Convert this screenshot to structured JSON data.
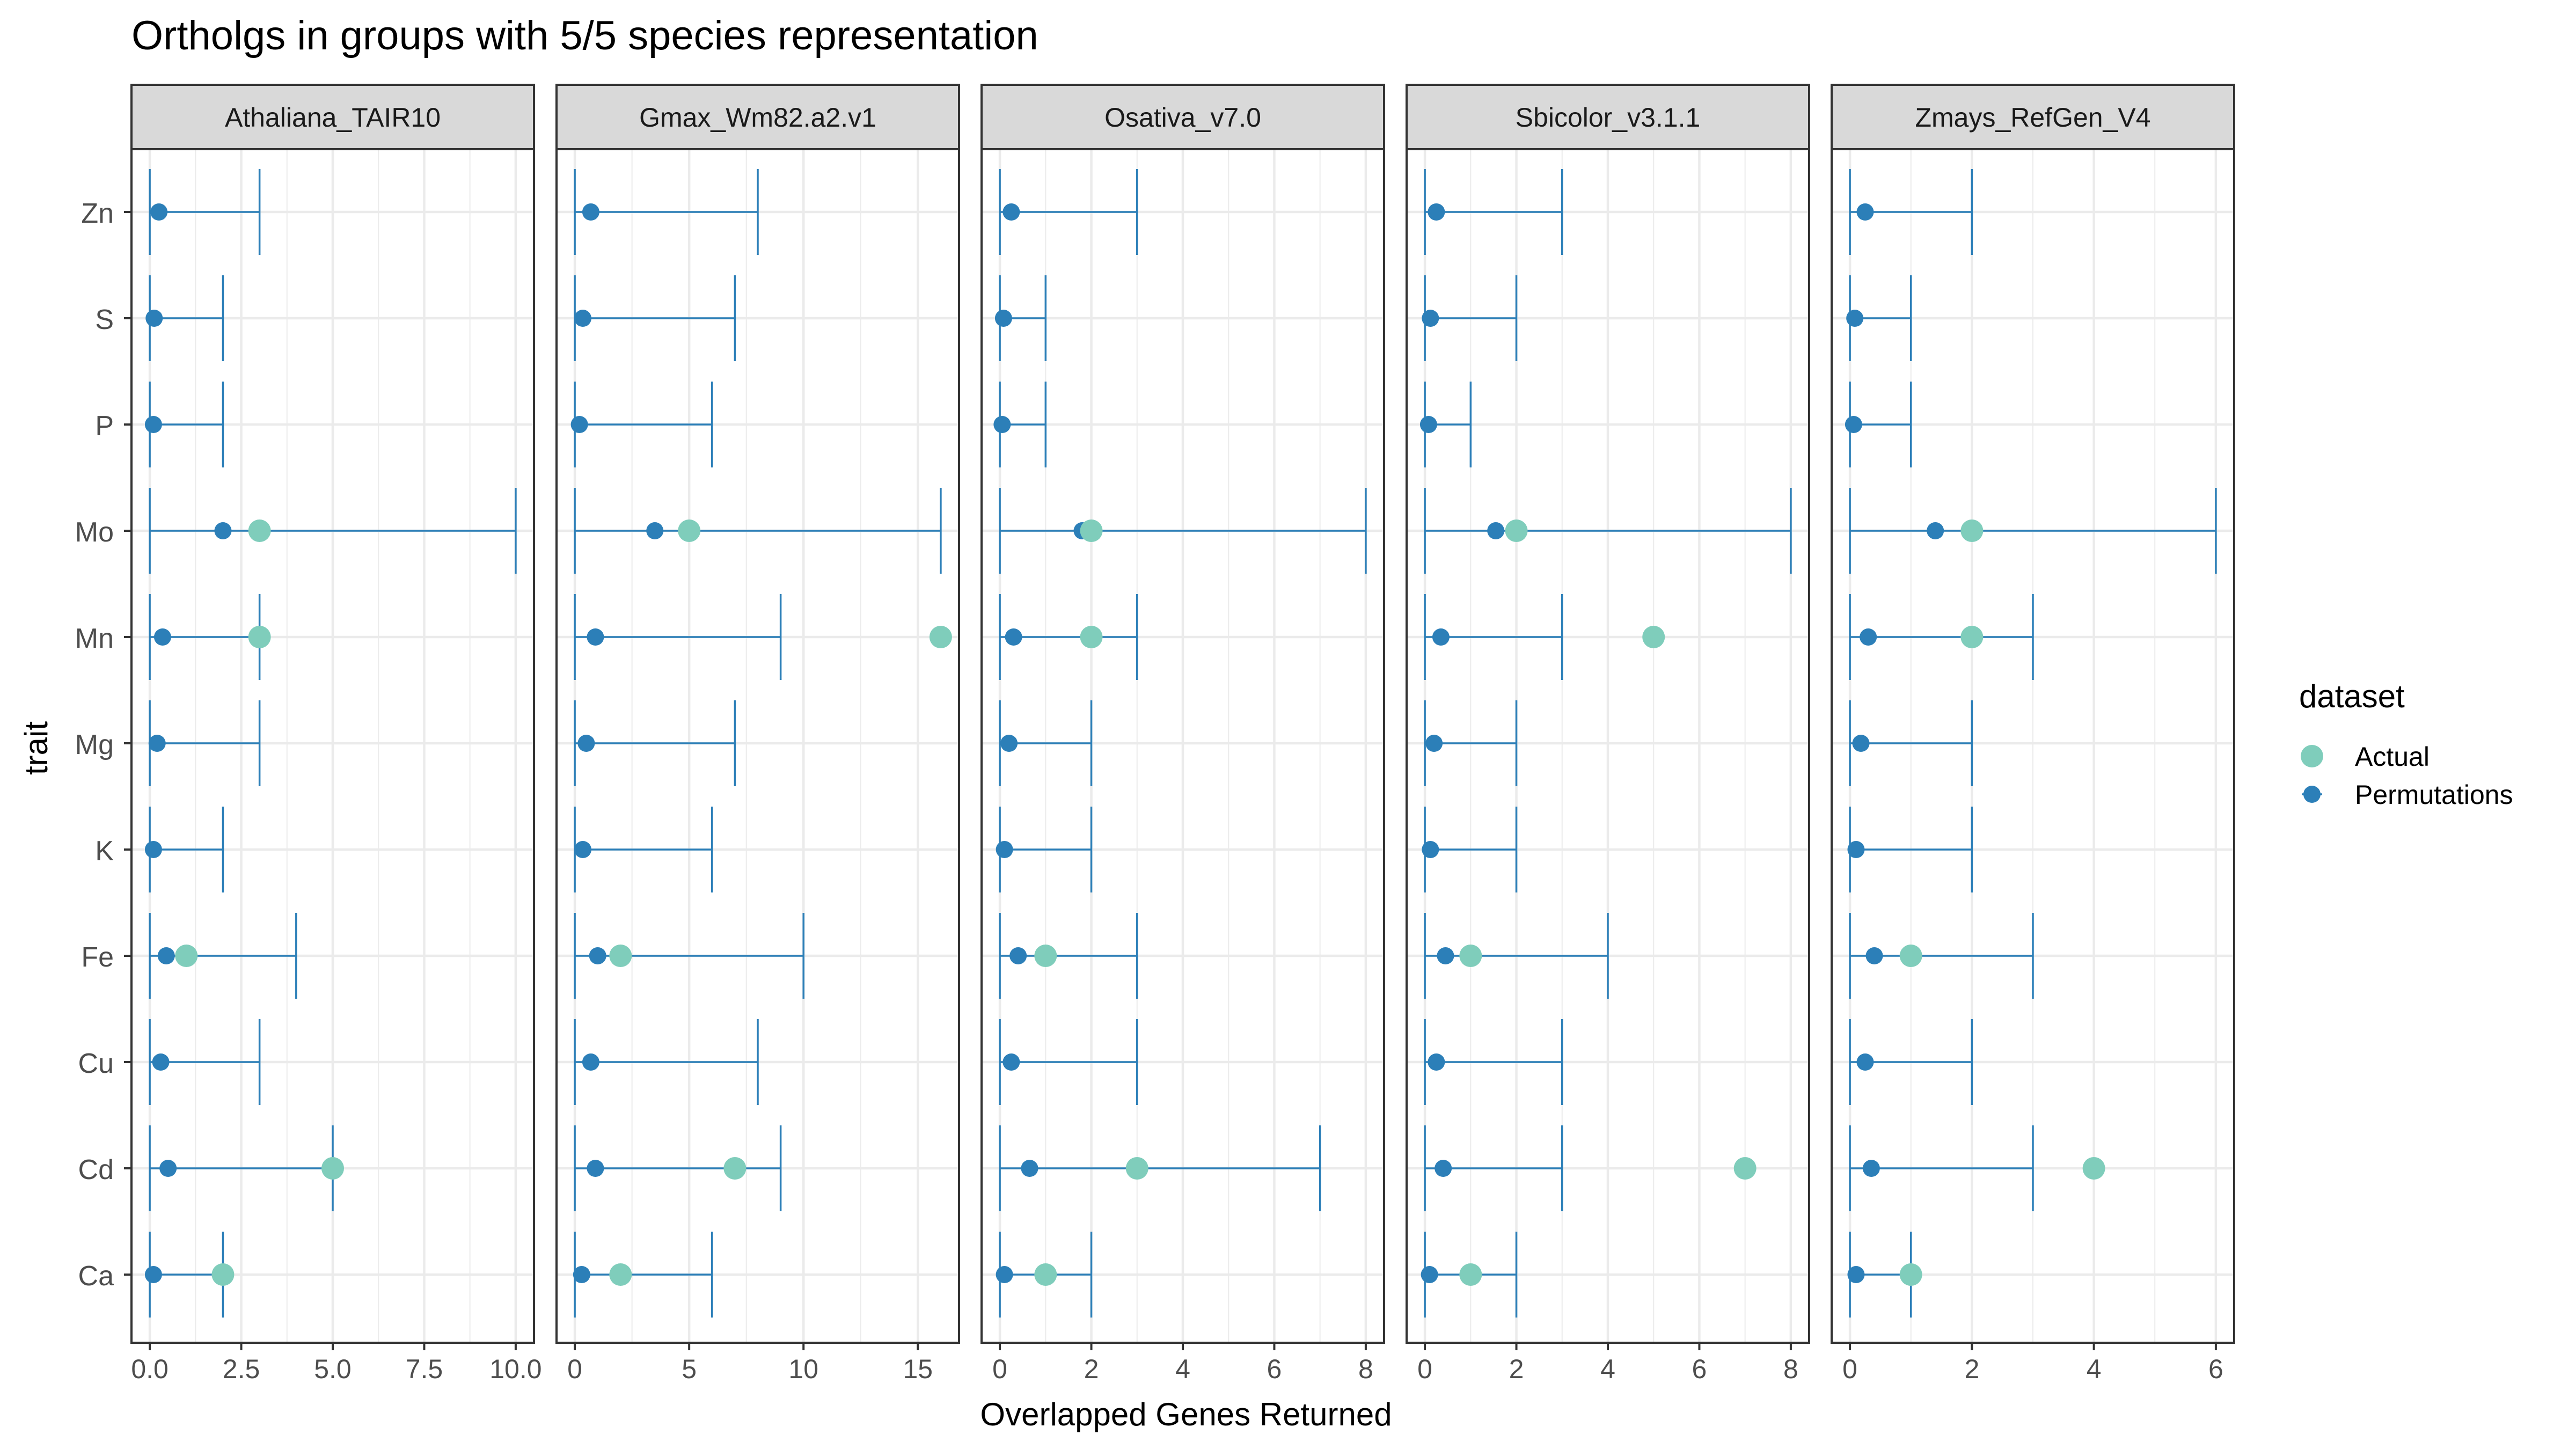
{
  "chart_data": {
    "type": "scatter",
    "title": "Ortholgs in groups with 5/5 species representation",
    "xlabel": "Overlapped Genes Returned",
    "ylabel": "trait",
    "traits": [
      "Zn",
      "S",
      "P",
      "Mo",
      "Mn",
      "Mg",
      "K",
      "Fe",
      "Cu",
      "Cd",
      "Ca"
    ],
    "legend": {
      "title": "dataset",
      "placement": "right",
      "entries": [
        {
          "label": "Actual",
          "color": "#7fcdbb"
        },
        {
          "label": "Permutations",
          "color": "#2c7fb8"
        }
      ]
    },
    "grid": true,
    "colors": {
      "actual": "#7fcdbb",
      "permutations": "#2c7fb8",
      "strip_bg": "#d9d9d9",
      "grid": "#ebebeb"
    },
    "panels": [
      {
        "name": "Athaliana_TAIR10",
        "xlim": [
          -0.5,
          10.5
        ],
        "ticks": [
          0.0,
          2.5,
          5.0,
          7.5,
          10.0
        ],
        "tick_labels": [
          "0.0",
          "2.5",
          "5.0",
          "7.5",
          "10.0"
        ],
        "permutations": {
          "Zn": {
            "mean": 0.25,
            "min": 0,
            "max": 3
          },
          "S": {
            "mean": 0.12,
            "min": 0,
            "max": 2
          },
          "P": {
            "mean": 0.1,
            "min": 0,
            "max": 2
          },
          "Mo": {
            "mean": 2.0,
            "min": 0,
            "max": 10
          },
          "Mn": {
            "mean": 0.35,
            "min": 0,
            "max": 3
          },
          "Mg": {
            "mean": 0.2,
            "min": 0,
            "max": 3
          },
          "K": {
            "mean": 0.1,
            "min": 0,
            "max": 2
          },
          "Fe": {
            "mean": 0.45,
            "min": 0,
            "max": 4
          },
          "Cu": {
            "mean": 0.3,
            "min": 0,
            "max": 3
          },
          "Cd": {
            "mean": 0.5,
            "min": 0,
            "max": 5
          },
          "Ca": {
            "mean": 0.1,
            "min": 0,
            "max": 2
          }
        },
        "actual": {
          "Mo": 3,
          "Mn": 3,
          "Fe": 1,
          "Cd": 5,
          "Ca": 2
        }
      },
      {
        "name": "Gmax_Wm82.a2.v1",
        "xlim": [
          -0.8,
          16.8
        ],
        "ticks": [
          0,
          5,
          10,
          15
        ],
        "tick_labels": [
          "0",
          "5",
          "10",
          "15"
        ],
        "permutations": {
          "Zn": {
            "mean": 0.7,
            "min": 0,
            "max": 8
          },
          "S": {
            "mean": 0.35,
            "min": 0,
            "max": 7
          },
          "P": {
            "mean": 0.2,
            "min": 0,
            "max": 6
          },
          "Mo": {
            "mean": 3.5,
            "min": 0,
            "max": 16
          },
          "Mn": {
            "mean": 0.9,
            "min": 0,
            "max": 9
          },
          "Mg": {
            "mean": 0.5,
            "min": 0,
            "max": 7
          },
          "K": {
            "mean": 0.35,
            "min": 0,
            "max": 6
          },
          "Fe": {
            "mean": 1.0,
            "min": 0,
            "max": 10
          },
          "Cu": {
            "mean": 0.7,
            "min": 0,
            "max": 8
          },
          "Cd": {
            "mean": 0.9,
            "min": 0,
            "max": 9
          },
          "Ca": {
            "mean": 0.3,
            "min": 0,
            "max": 6
          }
        },
        "actual": {
          "Mo": 5,
          "Mn": 16,
          "Fe": 2,
          "Cd": 7,
          "Ca": 2
        }
      },
      {
        "name": "Osativa_v7.0",
        "xlim": [
          -0.4,
          8.4
        ],
        "ticks": [
          0,
          2,
          4,
          6,
          8
        ],
        "tick_labels": [
          "0",
          "2",
          "4",
          "6",
          "8"
        ],
        "permutations": {
          "Zn": {
            "mean": 0.25,
            "min": 0,
            "max": 3
          },
          "S": {
            "mean": 0.08,
            "min": 0,
            "max": 1
          },
          "P": {
            "mean": 0.05,
            "min": 0,
            "max": 1
          },
          "Mo": {
            "mean": 1.8,
            "min": 0,
            "max": 8
          },
          "Mn": {
            "mean": 0.3,
            "min": 0,
            "max": 3
          },
          "Mg": {
            "mean": 0.2,
            "min": 0,
            "max": 2
          },
          "K": {
            "mean": 0.1,
            "min": 0,
            "max": 2
          },
          "Fe": {
            "mean": 0.4,
            "min": 0,
            "max": 3
          },
          "Cu": {
            "mean": 0.25,
            "min": 0,
            "max": 3
          },
          "Cd": {
            "mean": 0.65,
            "min": 0,
            "max": 7
          },
          "Ca": {
            "mean": 0.1,
            "min": 0,
            "max": 2
          }
        },
        "actual": {
          "Mo": 2,
          "Mn": 2,
          "Fe": 1,
          "Cd": 3,
          "Ca": 1
        }
      },
      {
        "name": "Sbicolor_v3.1.1",
        "xlim": [
          -0.4,
          8.4
        ],
        "ticks": [
          0,
          2,
          4,
          6,
          8
        ],
        "tick_labels": [
          "0",
          "2",
          "4",
          "6",
          "8"
        ],
        "permutations": {
          "Zn": {
            "mean": 0.25,
            "min": 0,
            "max": 3
          },
          "S": {
            "mean": 0.12,
            "min": 0,
            "max": 2
          },
          "P": {
            "mean": 0.08,
            "min": 0,
            "max": 1
          },
          "Mo": {
            "mean": 1.55,
            "min": 0,
            "max": 8
          },
          "Mn": {
            "mean": 0.35,
            "min": 0,
            "max": 3
          },
          "Mg": {
            "mean": 0.2,
            "min": 0,
            "max": 2
          },
          "K": {
            "mean": 0.12,
            "min": 0,
            "max": 2
          },
          "Fe": {
            "mean": 0.45,
            "min": 0,
            "max": 4
          },
          "Cu": {
            "mean": 0.25,
            "min": 0,
            "max": 3
          },
          "Cd": {
            "mean": 0.4,
            "min": 0,
            "max": 3
          },
          "Ca": {
            "mean": 0.1,
            "min": 0,
            "max": 2
          }
        },
        "actual": {
          "Mo": 2,
          "Mn": 5,
          "Fe": 1,
          "Cd": 7,
          "Ca": 1
        }
      },
      {
        "name": "Zmays_RefGen_V4",
        "xlim": [
          -0.3,
          6.3
        ],
        "ticks": [
          0,
          2,
          4,
          6
        ],
        "tick_labels": [
          "0",
          "2",
          "4",
          "6"
        ],
        "permutations": {
          "Zn": {
            "mean": 0.25,
            "min": 0,
            "max": 2
          },
          "S": {
            "mean": 0.08,
            "min": 0,
            "max": 1
          },
          "P": {
            "mean": 0.06,
            "min": 0,
            "max": 1
          },
          "Mo": {
            "mean": 1.4,
            "min": 0,
            "max": 6
          },
          "Mn": {
            "mean": 0.3,
            "min": 0,
            "max": 3
          },
          "Mg": {
            "mean": 0.18,
            "min": 0,
            "max": 2
          },
          "K": {
            "mean": 0.1,
            "min": 0,
            "max": 2
          },
          "Fe": {
            "mean": 0.4,
            "min": 0,
            "max": 3
          },
          "Cu": {
            "mean": 0.25,
            "min": 0,
            "max": 2
          },
          "Cd": {
            "mean": 0.35,
            "min": 0,
            "max": 3
          },
          "Ca": {
            "mean": 0.1,
            "min": 0,
            "max": 1
          }
        },
        "actual": {
          "Mo": 2,
          "Mn": 2,
          "Fe": 1,
          "Cd": 4,
          "Ca": 1
        }
      }
    ]
  }
}
